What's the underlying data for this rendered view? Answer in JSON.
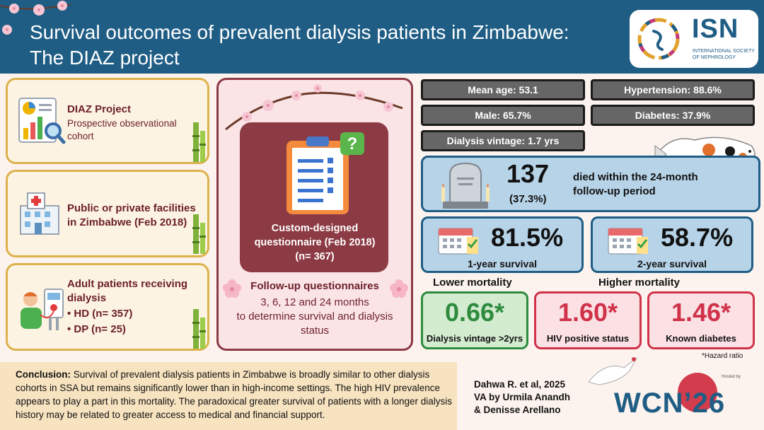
{
  "header": {
    "title_line1": "Survival outcomes of prevalent dialysis patients in Zimbabwe:",
    "title_line2": "The DIAZ project",
    "logo_text": "ISN",
    "logo_sub1": "INTERNATIONAL SOCIETY",
    "logo_sub2": "OF NEPHROLOGY"
  },
  "left_cards": [
    {
      "title": "DIAZ Project",
      "subtitle_line1": "Prospective observational",
      "subtitle_line2": "cohort",
      "icon": "report-chart-icon"
    },
    {
      "title_line1": "Public or private facilities",
      "title_line2": "in Zimbabwe (Feb 2018)",
      "icon": "hospital-icon"
    },
    {
      "title_line1": "Adult patients receiving",
      "title_line2": "dialysis",
      "bullet1": "• HD (n= 357)",
      "bullet2": "• DP (n= 25)",
      "icon": "dialysis-patient-icon"
    }
  ],
  "middle": {
    "q_line1": "Custom-designed",
    "q_line2": "questionnaire (Feb 2018)",
    "q_line3": "(n= 367)",
    "followup_title": "Follow-up questionnaires",
    "followup_line1": "3, 6, 12 and 24 months",
    "followup_line2": "to determine survival and dialysis",
    "followup_line3": "status",
    "icon": "clipboard-question-icon"
  },
  "stats": {
    "mean_age": "Mean age: 53.1",
    "hypertension": "Hypertension: 88.6%",
    "male": "Male: 65.7%",
    "diabetes": "Diabetes: 37.9%",
    "vintage": "Dialysis vintage: 1.7 yrs"
  },
  "died": {
    "count": "137",
    "pct": "(37.3%)",
    "text_line1": "died within the 24-month",
    "text_line2": "follow-up period",
    "icon": "tombstone-icon"
  },
  "survival": [
    {
      "value": "81.5%",
      "label": "1-year survival",
      "icon": "calendar-icon"
    },
    {
      "value": "58.7%",
      "label": "2-year survival",
      "icon": "calendar-icon"
    }
  ],
  "sections": {
    "lower": "Lower mortality",
    "higher": "Higher mortality"
  },
  "hazards": [
    {
      "value": "0.66*",
      "label": "Dialysis vintage >2yrs",
      "color": "#2e8b3e"
    },
    {
      "value": "1.60*",
      "label": "HIV positive status",
      "color": "#d0324a"
    },
    {
      "value": "1.46*",
      "label": "Known diabetes",
      "color": "#d0324a"
    }
  ],
  "hazard_note": "*Hazard ratio",
  "conclusion": {
    "label": "Conclusion:",
    "text": " Survival of prevalent dialysis patients in Zimbabwe is broadly similar to other dialysis cohorts in SSA but remains significantly lower than in high-income settings. The high HIV prevalence appears to play a part in this mortality. The paradoxical greater survival of patients with a longer dialysis history may be related to greater access to medical and financial support."
  },
  "credit": {
    "line1": "Dahwa R. et al, 2025",
    "line2": "VA by Urmila Anandh",
    "line3": "& Denisse Arellano"
  },
  "wcn": {
    "text": "WCN’26",
    "hosted": "Hosted by"
  },
  "colors": {
    "header": "#1f5d85",
    "maroon": "#8c3a44",
    "gold": "#dcb24c",
    "blue_box": "#b7d3e8",
    "green": "#2e8b3e",
    "red": "#d0324a"
  }
}
